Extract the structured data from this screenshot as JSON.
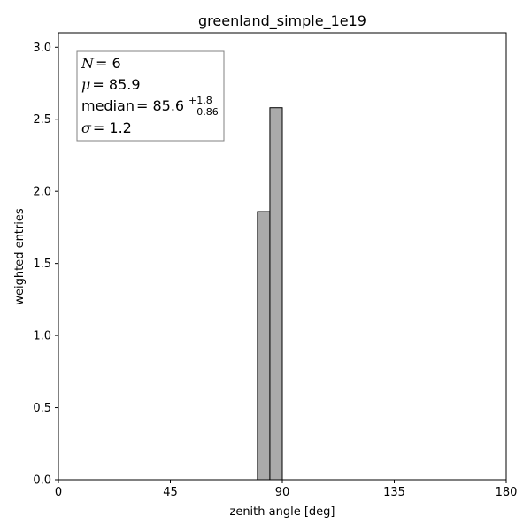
{
  "chart_data": {
    "type": "bar",
    "title": "greenland_simple_1e19",
    "xlabel": "zenith angle [deg]",
    "ylabel": "weighted entries",
    "xlim": [
      0,
      180
    ],
    "ylim": [
      0,
      3.1
    ],
    "xticks": [
      0,
      45,
      90,
      135,
      180
    ],
    "xtick_labels": [
      "0",
      "45",
      "90",
      "135",
      "180"
    ],
    "yticks": [
      0.0,
      0.5,
      1.0,
      1.5,
      2.0,
      2.5,
      3.0
    ],
    "ytick_labels": [
      "0.0",
      "0.5",
      "1.0",
      "1.5",
      "2.0",
      "2.5",
      "3.0"
    ],
    "bins": [
      {
        "x0": 80,
        "x1": 85,
        "value": 1.86
      },
      {
        "x0": 85,
        "x1": 90,
        "value": 2.58
      }
    ],
    "bar_color": "#aaaaaa",
    "edge_color": "#000000",
    "grid": false,
    "stats_box": {
      "placement": "top-left",
      "n_symbol": "N",
      "n_value": "= 6",
      "mu_symbol": "μ",
      "mu_value": "= 85.9",
      "median_label": "median",
      "median_value": "= 85.6",
      "median_plus": "+1.8",
      "median_minus": "−0.86",
      "sigma_symbol": "σ",
      "sigma_value": "= 1.2"
    }
  }
}
